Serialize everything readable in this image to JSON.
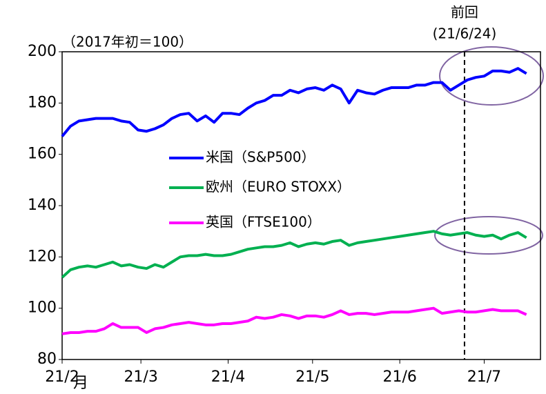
{
  "chart_data": {
    "type": "line",
    "subtitle": "（2017年初＝100）",
    "xlabel": "月",
    "xlim": [
      0,
      170
    ],
    "xticks": [
      {
        "value": 0,
        "label": "21/2"
      },
      {
        "value": 28,
        "label": "21/3"
      },
      {
        "value": 59,
        "label": "21/4"
      },
      {
        "value": 89,
        "label": "21/5"
      },
      {
        "value": 120,
        "label": "21/6"
      },
      {
        "value": 150,
        "label": "21/7"
      }
    ],
    "ylim": [
      80,
      200
    ],
    "yticks": [
      80,
      100,
      120,
      140,
      160,
      180,
      200
    ],
    "x": [
      0,
      3,
      6,
      9,
      12,
      15,
      18,
      21,
      24,
      27,
      30,
      33,
      36,
      39,
      42,
      45,
      48,
      51,
      54,
      57,
      60,
      63,
      66,
      69,
      72,
      75,
      78,
      81,
      84,
      87,
      90,
      93,
      96,
      99,
      102,
      105,
      108,
      111,
      114,
      117,
      120,
      123,
      126,
      129,
      132,
      135,
      138,
      141,
      144,
      147,
      150,
      153,
      156,
      159,
      162,
      165
    ],
    "series": [
      {
        "name": "米国（S&P500）",
        "color": "#0000ff",
        "values": [
          167,
          171,
          173,
          173.5,
          174,
          174,
          174,
          173,
          172.5,
          169.5,
          169,
          170,
          171.5,
          174,
          175.5,
          176,
          173,
          175,
          172.5,
          176,
          176,
          175.5,
          178,
          180,
          181,
          183,
          183,
          185,
          184,
          185.5,
          186,
          185,
          187,
          185.5,
          180,
          185,
          184,
          183.5,
          185,
          186,
          186,
          186,
          187,
          187,
          188,
          188,
          185,
          187,
          189,
          190,
          190.5,
          192.5,
          192.5,
          192,
          193.5,
          191.5
        ]
      },
      {
        "name": "欧州（EURO STOXX）",
        "color": "#00b050",
        "values": [
          112,
          115,
          116,
          116.5,
          116,
          117,
          118,
          116.5,
          117,
          116,
          115.5,
          117,
          116,
          118,
          120,
          120.5,
          120.5,
          121,
          120.5,
          120.5,
          121,
          122,
          123,
          123.5,
          124,
          124,
          124.5,
          125.5,
          124,
          125,
          125.5,
          125,
          126,
          126.5,
          124.5,
          125.5,
          126,
          126.5,
          127,
          127.5,
          128,
          128.5,
          129,
          129.5,
          130,
          129,
          128.5,
          129,
          129.5,
          128.5,
          128,
          128.5,
          127,
          128.5,
          129.5,
          127.5
        ]
      },
      {
        "name": "英国（FTSE100）",
        "color": "#ff00ff",
        "values": [
          90,
          90.5,
          90.5,
          91,
          91,
          92,
          94,
          92.5,
          92.5,
          92.5,
          90.5,
          92,
          92.5,
          93.5,
          94,
          94.5,
          94,
          93.5,
          93.5,
          94,
          94,
          94.5,
          95,
          96.5,
          96,
          96.5,
          97.5,
          97,
          96,
          97,
          97,
          96.5,
          97.5,
          99,
          97.5,
          98,
          98,
          97.5,
          98,
          98.5,
          98.5,
          98.5,
          99,
          99.5,
          100,
          98,
          98.5,
          99,
          98.5,
          98.5,
          99,
          99.5,
          99,
          99,
          99,
          97.5
        ]
      }
    ],
    "annotation": {
      "x": 143,
      "label": "前回",
      "sublabel": "(21/6/24)"
    }
  }
}
